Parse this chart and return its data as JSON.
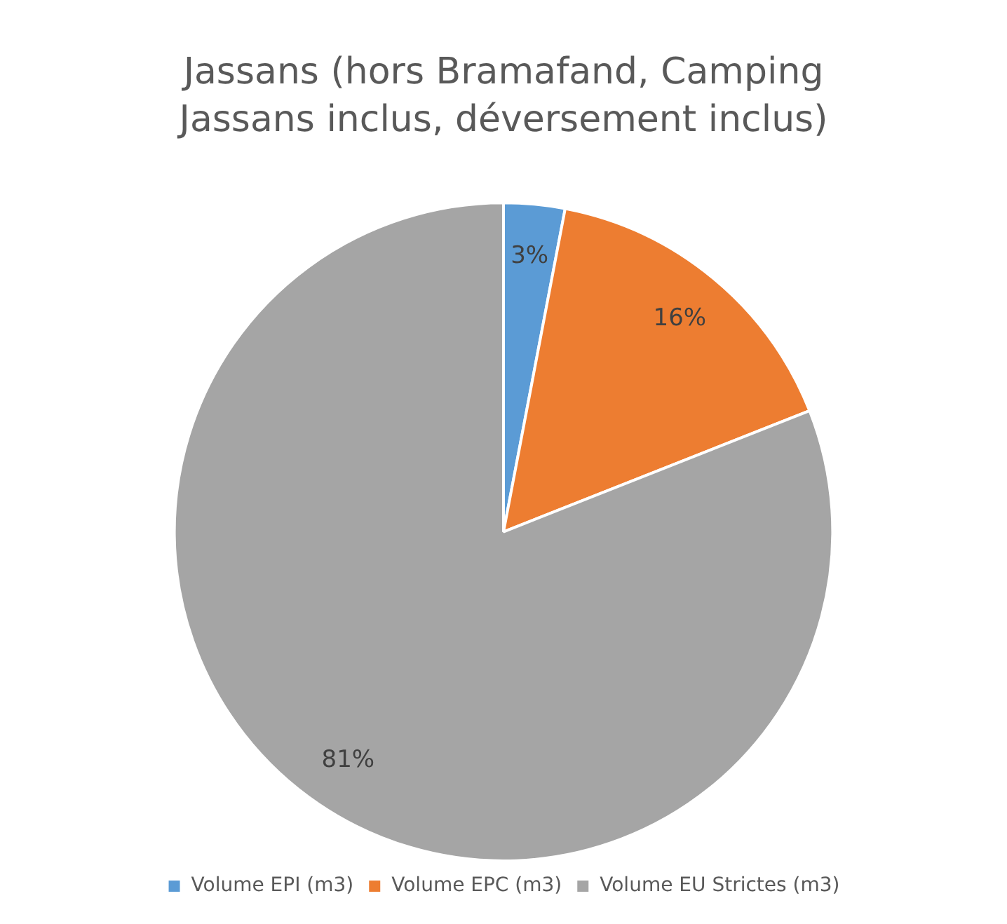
{
  "chart_data": {
    "type": "pie",
    "title": "Jassans (hors Bramafand, Camping Jassans inclus, déversement inclus)",
    "categories": [
      "Volume EPI (m3)",
      "Volume EPC (m3)",
      "Volume EU Strictes (m3)"
    ],
    "values": [
      3,
      16,
      81
    ],
    "colors": [
      "#5b9bd5",
      "#ed7d31",
      "#a5a5a5"
    ],
    "value_labels": [
      "3%",
      "16%",
      "81%"
    ],
    "legend": "bottom"
  }
}
